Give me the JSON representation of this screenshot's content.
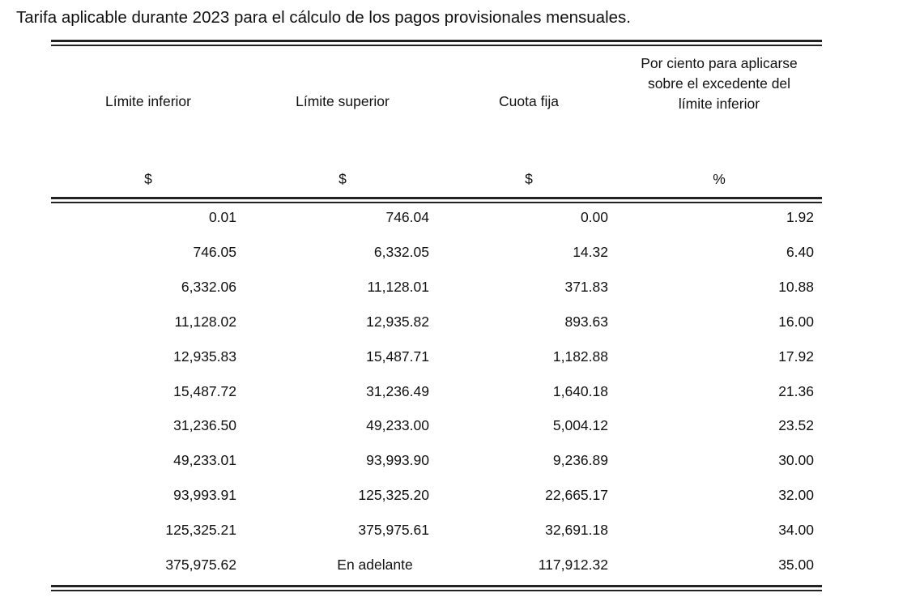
{
  "title": "Tarifa aplicable durante 2023 para el cálculo de los pagos provisionales mensuales.",
  "columns": [
    {
      "label": "Límite inferior",
      "unit": "$"
    },
    {
      "label": "Límite superior",
      "unit": "$"
    },
    {
      "label": "Cuota fija",
      "unit": "$"
    },
    {
      "label": "Por ciento para aplicarse sobre el excedente del límite inferior",
      "unit": "%"
    }
  ],
  "rows": [
    [
      "0.01",
      "746.04",
      "0.00",
      "1.92"
    ],
    [
      "746.05",
      "6,332.05",
      "14.32",
      "6.40"
    ],
    [
      "6,332.06",
      "11,128.01",
      "371.83",
      "10.88"
    ],
    [
      "11,128.02",
      "12,935.82",
      "893.63",
      "16.00"
    ],
    [
      "12,935.83",
      "15,487.71",
      "1,182.88",
      "17.92"
    ],
    [
      "15,487.72",
      "31,236.49",
      "1,640.18",
      "21.36"
    ],
    [
      "31,236.50",
      "49,233.00",
      "5,004.12",
      "23.52"
    ],
    [
      "49,233.01",
      "93,993.90",
      "9,236.89",
      "30.00"
    ],
    [
      "93,993.91",
      "125,325.20",
      "22,665.17",
      "32.00"
    ],
    [
      "125,325.21",
      "375,975.61",
      "32,691.18",
      "34.00"
    ],
    [
      "375,975.62",
      "En adelante",
      "117,912.32",
      "35.00"
    ]
  ]
}
